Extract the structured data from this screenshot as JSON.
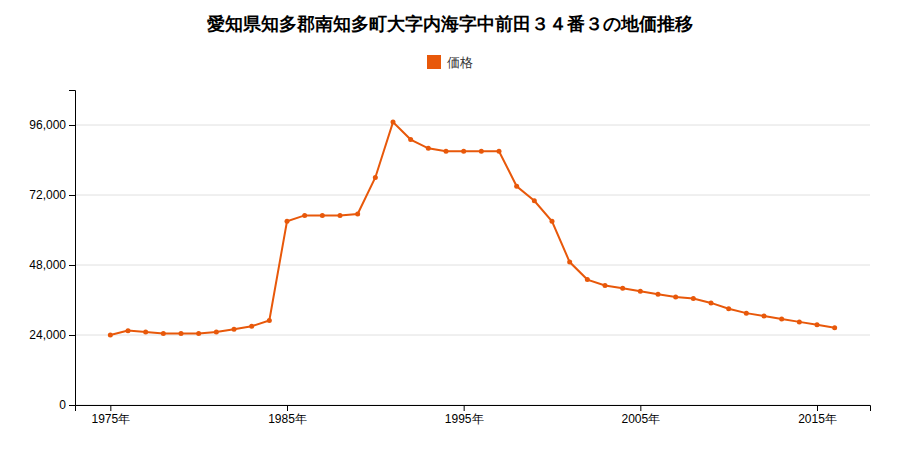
{
  "chart_data": {
    "type": "line",
    "title": "愛知県知多郡南知多町大字内海字中前田３４番３の地価推移",
    "x": [
      1975,
      1976,
      1977,
      1978,
      1979,
      1980,
      1981,
      1982,
      1983,
      1984,
      1985,
      1986,
      1987,
      1988,
      1989,
      1990,
      1991,
      1992,
      1993,
      1994,
      1995,
      1996,
      1997,
      1998,
      1999,
      2000,
      2001,
      2002,
      2003,
      2004,
      2005,
      2006,
      2007,
      2008,
      2009,
      2010,
      2011,
      2012,
      2013,
      2014,
      2015,
      2016
    ],
    "series": [
      {
        "name": "価格",
        "color": "#E8580A",
        "marker": "circle",
        "line_style": "solid",
        "values": [
          24000,
          25500,
          25000,
          24500,
          24500,
          24500,
          25000,
          26000,
          27000,
          29000,
          63000,
          65000,
          65000,
          65000,
          65500,
          78000,
          97000,
          91000,
          88000,
          87000,
          87000,
          87000,
          87000,
          75000,
          70000,
          63000,
          49000,
          43000,
          41000,
          40000,
          39000,
          38000,
          37000,
          36500,
          35000,
          33000,
          31500,
          30500,
          29500,
          28500,
          27500,
          26500
        ]
      }
    ],
    "xlim": [
      1973,
      2018
    ],
    "xticks": [
      {
        "value": 1975,
        "label": "1975年"
      },
      {
        "value": 1985,
        "label": "1985年"
      },
      {
        "value": 1995,
        "label": "1995年"
      },
      {
        "value": 2005,
        "label": "2005年"
      },
      {
        "value": 2015,
        "label": "2015年"
      }
    ],
    "ylim": [
      0,
      108000
    ],
    "yticks": [
      0,
      {
        "value": 24000,
        "label": "24,000"
      },
      {
        "value": 48000,
        "label": "48,000"
      },
      {
        "value": 72000,
        "label": "72,000"
      },
      {
        "value": 96000,
        "label": "96,000"
      }
    ],
    "grid": "y",
    "legend": "top"
  }
}
